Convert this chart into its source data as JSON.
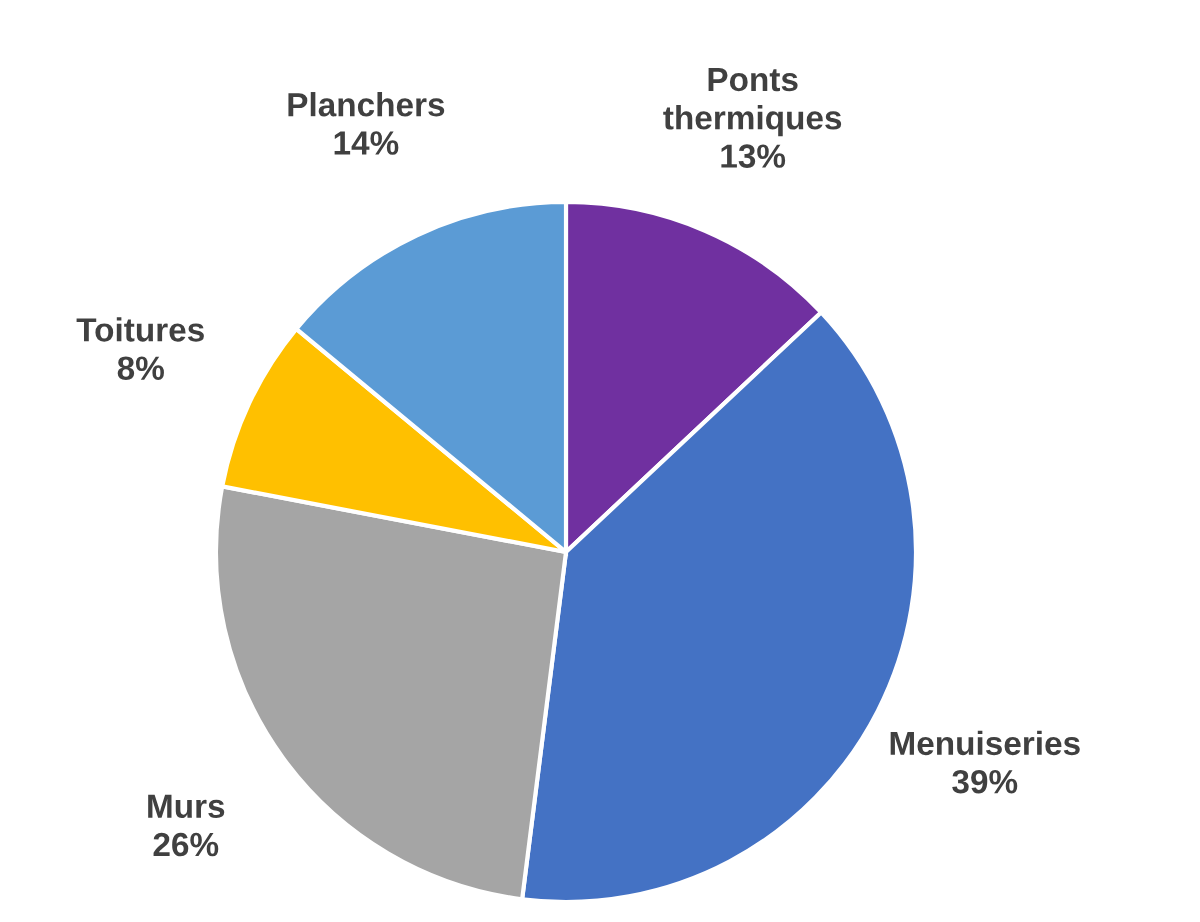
{
  "chart_data": {
    "type": "pie",
    "categories": [
      "Ponts thermiques",
      "Menuiseries",
      "Murs",
      "Toitures",
      "Planchers"
    ],
    "values": [
      13,
      39,
      26,
      8,
      14
    ],
    "value_labels": [
      "13%",
      "39%",
      "26%",
      "8%",
      "14%"
    ],
    "colors": [
      "#7030a0",
      "#4472c4",
      "#a5a5a5",
      "#ffc000",
      "#5b9bd5"
    ]
  }
}
